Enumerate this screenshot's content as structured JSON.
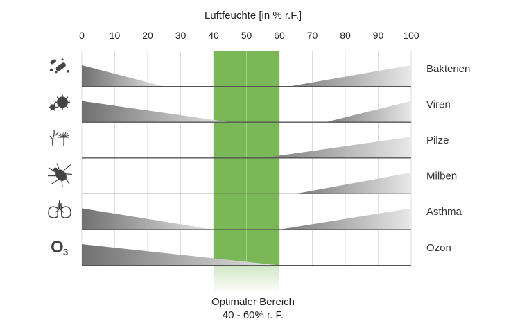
{
  "chart_data": {
    "type": "area",
    "title": "",
    "xlabel": "Luftfeuchte [in % r.F.]",
    "xlim": [
      0,
      100
    ],
    "xticks": [
      0,
      10,
      20,
      30,
      40,
      50,
      60,
      70,
      80,
      90,
      100
    ],
    "optimal_range": {
      "from": 40,
      "to": 60,
      "label_line1": "Optimaler Bereich",
      "label_line2": "40 - 60% r. F.",
      "color": "#7ab857"
    },
    "rows": [
      {
        "label": "Bakterien",
        "icon": "bacteria-icon",
        "left": {
          "from": 0,
          "to": 25
        },
        "right": {
          "from": 63,
          "to": 100
        }
      },
      {
        "label": "Viren",
        "icon": "virus-icon",
        "left": {
          "from": 0,
          "to": 45
        },
        "right": {
          "from": 74,
          "to": 100
        }
      },
      {
        "label": "Pilze",
        "icon": "fungi-icon",
        "left": null,
        "right": {
          "from": 55,
          "to": 100
        }
      },
      {
        "label": "Milben",
        "icon": "mite-icon",
        "left": null,
        "right": {
          "from": 65,
          "to": 100
        }
      },
      {
        "label": "Asthma",
        "icon": "lungs-icon",
        "left": {
          "from": 0,
          "to": 40
        },
        "right": {
          "from": 60,
          "to": 100
        }
      },
      {
        "label": "Ozon",
        "icon": "ozone-icon",
        "icon_text": "O",
        "icon_sub": "3",
        "left": {
          "from": 0,
          "to": 60
        },
        "right": null
      }
    ],
    "colors": {
      "wedge_dark": "#707070",
      "wedge_light": "#e8e8e8",
      "grid": "#dedede",
      "row_line": "#555555"
    }
  }
}
